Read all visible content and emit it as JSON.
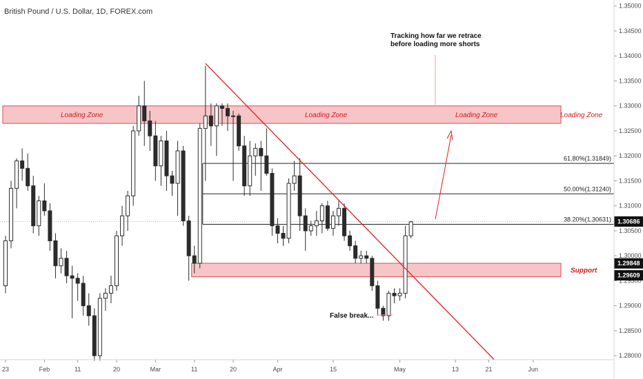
{
  "header": {
    "title": "British Pound / U.S. Dollar, 1D, FOREX.com"
  },
  "chart_data": {
    "type": "candlestick",
    "symbol": "GBPUSD",
    "ylim": [
      1.2792,
      1.3512
    ],
    "y_ticks": [
      "1.35000",
      "1.34500",
      "1.34000",
      "1.33500",
      "1.33000",
      "1.32500",
      "1.32000",
      "1.31500",
      "1.31000",
      "1.30500",
      "1.30000",
      "1.29500",
      "1.29000",
      "1.28500",
      "1.28000"
    ],
    "x_ticks": [
      {
        "label": "23",
        "i": 0
      },
      {
        "label": "Feb",
        "i": 7
      },
      {
        "label": "11",
        "i": 13
      },
      {
        "label": "20",
        "i": 20
      },
      {
        "label": "Mar",
        "i": 27
      },
      {
        "label": "11",
        "i": 34
      },
      {
        "label": "20",
        "i": 41
      },
      {
        "label": "Apr",
        "i": 49
      },
      {
        "label": "15",
        "i": 59
      },
      {
        "label": "May",
        "i": 71
      },
      {
        "label": "13",
        "i": 81
      },
      {
        "label": "21",
        "i": 87
      },
      {
        "label": "Jun",
        "i": 95
      }
    ],
    "candles": [
      [
        1.294,
        1.304,
        1.2925,
        1.303
      ],
      [
        1.303,
        1.315,
        1.3015,
        1.3135
      ],
      [
        1.3135,
        1.3195,
        1.3095,
        1.319
      ],
      [
        1.319,
        1.3215,
        1.315,
        1.3175
      ],
      [
        1.3175,
        1.3205,
        1.313,
        1.314
      ],
      [
        1.314,
        1.316,
        1.3045,
        1.306
      ],
      [
        1.306,
        1.312,
        1.304,
        1.311
      ],
      [
        1.311,
        1.3145,
        1.308,
        1.309
      ],
      [
        1.309,
        1.3105,
        1.301,
        1.303
      ],
      [
        1.303,
        1.3045,
        1.2955,
        1.298
      ],
      [
        1.298,
        1.3015,
        1.2965,
        1.2995
      ],
      [
        1.2995,
        1.301,
        1.2945,
        1.296
      ],
      [
        1.296,
        1.298,
        1.2875,
        1.2955
      ],
      [
        1.2955,
        1.2965,
        1.291,
        1.2945
      ],
      [
        1.2945,
        1.296,
        1.288,
        1.29
      ],
      [
        1.29,
        1.2925,
        1.286,
        1.288
      ],
      [
        1.288,
        1.2895,
        1.279,
        1.28
      ],
      [
        1.28,
        1.2925,
        1.279,
        1.2915
      ],
      [
        1.2915,
        1.2935,
        1.289,
        1.2925
      ],
      [
        1.2925,
        1.296,
        1.2905,
        1.294
      ],
      [
        1.294,
        1.305,
        1.293,
        1.304
      ],
      [
        1.304,
        1.31,
        1.302,
        1.308
      ],
      [
        1.308,
        1.313,
        1.305,
        1.312
      ],
      [
        1.312,
        1.326,
        1.31,
        1.325
      ],
      [
        1.325,
        1.332,
        1.324,
        1.33
      ],
      [
        1.33,
        1.335,
        1.322,
        1.327
      ],
      [
        1.327,
        1.329,
        1.321,
        1.324
      ],
      [
        1.324,
        1.327,
        1.315,
        1.318
      ],
      [
        1.318,
        1.324,
        1.314,
        1.323
      ],
      [
        1.323,
        1.325,
        1.313,
        1.316
      ],
      [
        1.316,
        1.317,
        1.312,
        1.3145
      ],
      [
        1.3145,
        1.323,
        1.308,
        1.321
      ],
      [
        1.321,
        1.322,
        1.306,
        1.307
      ],
      [
        1.307,
        1.308,
        1.295,
        1.3
      ],
      [
        1.3,
        1.302,
        1.2965,
        1.2985
      ],
      [
        1.2985,
        1.3265,
        1.2975,
        1.3255
      ],
      [
        1.3255,
        1.338,
        1.315,
        1.328
      ],
      [
        1.328,
        1.3305,
        1.322,
        1.326
      ],
      [
        1.326,
        1.3305,
        1.32,
        1.33
      ],
      [
        1.33,
        1.3305,
        1.326,
        1.3295
      ],
      [
        1.3295,
        1.3305,
        1.325,
        1.328
      ],
      [
        1.328,
        1.329,
        1.315,
        1.328
      ],
      [
        1.328,
        1.3285,
        1.321,
        1.322
      ],
      [
        1.322,
        1.324,
        1.312,
        1.314
      ],
      [
        1.314,
        1.323,
        1.312,
        1.32
      ],
      [
        1.32,
        1.3225,
        1.316,
        1.3215
      ],
      [
        1.3215,
        1.323,
        1.313,
        1.32
      ],
      [
        1.32,
        1.3255,
        1.316,
        1.3165
      ],
      [
        1.3165,
        1.3175,
        1.304,
        1.306
      ],
      [
        1.306,
        1.3075,
        1.3025,
        1.3045
      ],
      [
        1.3045,
        1.306,
        1.302,
        1.3035
      ],
      [
        1.3035,
        1.3155,
        1.3025,
        1.3145
      ],
      [
        1.3145,
        1.319,
        1.313,
        1.316
      ],
      [
        1.316,
        1.3195,
        1.305,
        1.308
      ],
      [
        1.308,
        1.3095,
        1.301,
        1.305
      ],
      [
        1.305,
        1.307,
        1.304,
        1.306
      ],
      [
        1.306,
        1.309,
        1.304,
        1.307
      ],
      [
        1.307,
        1.3105,
        1.3045,
        1.31
      ],
      [
        1.31,
        1.311,
        1.305,
        1.3055
      ],
      [
        1.3055,
        1.309,
        1.304,
        1.308
      ],
      [
        1.308,
        1.311,
        1.306,
        1.3095
      ],
      [
        1.3095,
        1.3105,
        1.303,
        1.304
      ],
      [
        1.304,
        1.305,
        1.301,
        1.302
      ],
      [
        1.302,
        1.303,
        1.2985,
        1.2995
      ],
      [
        1.2995,
        1.301,
        1.2985,
        1.3
      ],
      [
        1.3,
        1.301,
        1.2985,
        1.2995
      ],
      [
        1.2995,
        1.3,
        1.293,
        1.294
      ],
      [
        1.294,
        1.295,
        1.288,
        1.2895
      ],
      [
        1.2895,
        1.29,
        1.287,
        1.288
      ],
      [
        1.288,
        1.293,
        1.287,
        1.2925
      ],
      [
        1.2925,
        1.2935,
        1.2905,
        1.292
      ],
      [
        1.292,
        1.2935,
        1.291,
        1.2925
      ],
      [
        1.2925,
        1.306,
        1.2915,
        1.304
      ],
      [
        1.304,
        1.307,
        1.3035,
        1.3068
      ]
    ],
    "zones": [
      {
        "name": "Loading Zone",
        "low": 1.3265,
        "high": 1.33,
        "from_i": 0,
        "to_i": 100
      },
      {
        "name": "Support",
        "low": 1.2958,
        "high": 1.2985,
        "from_i": 34,
        "to_i": 100
      }
    ],
    "fib_levels": [
      {
        "label": "61.80%(1.31849)",
        "price": 1.31849,
        "from_i": 36
      },
      {
        "label": "50.00%(1.31240)",
        "price": 1.3124,
        "from_i": 36
      },
      {
        "label": "38.20%(1.30631)",
        "price": 1.30631,
        "from_i": 36
      }
    ],
    "trendline": {
      "from": {
        "i": 36,
        "price": 1.3385
      },
      "to": {
        "i": 88,
        "price": 1.2792
      }
    },
    "current_price": "1.30686",
    "price_tags": [
      "1.29848",
      "1.29609"
    ],
    "annotations": {
      "loading_zone": "Loading Zone",
      "support": "Support",
      "tracking_line1": "Tracking how far we retrace",
      "tracking_line2": "before loading more shorts",
      "false_break": "False break..."
    },
    "colors": {
      "zone_fill": "#f6c5c8",
      "zone_border": "#e04a52",
      "trendline": "#e11d1d",
      "annotation_text": "#d01b1b",
      "bull_candle": "#ffffff",
      "bear_candle": "#2b2b2b",
      "tag_dark": "#111111",
      "tag_light": "#ffffff"
    }
  }
}
